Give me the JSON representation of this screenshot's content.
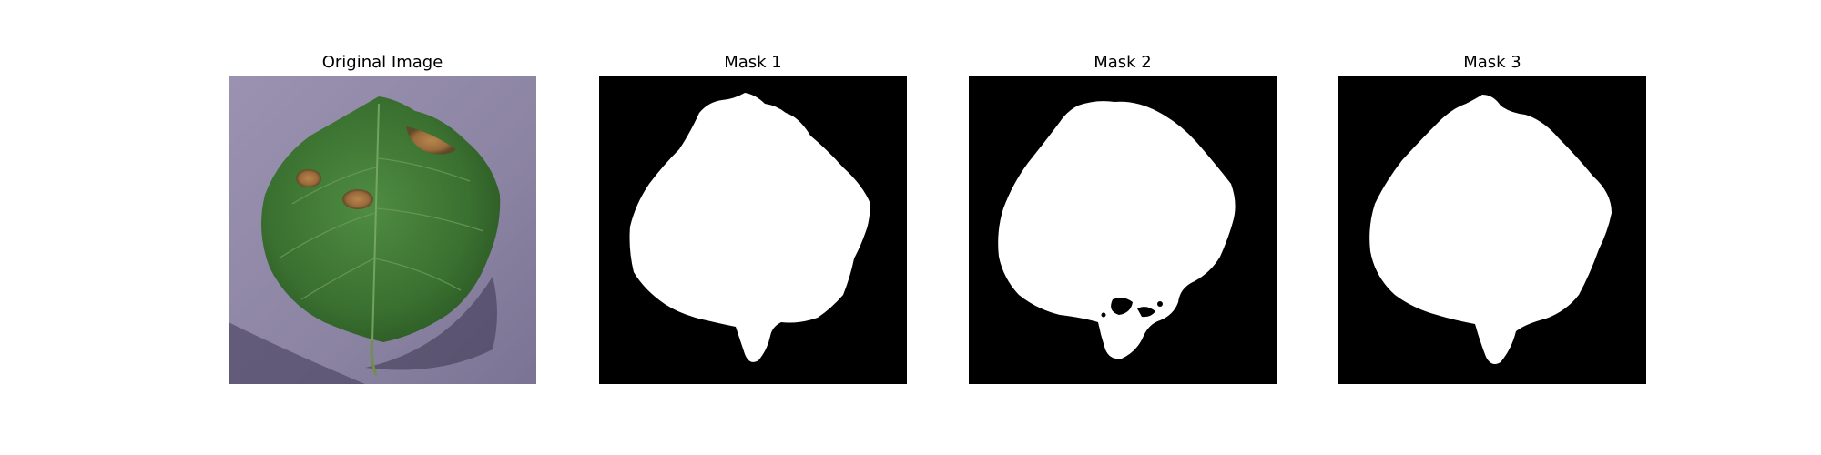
{
  "panels": [
    {
      "title": "Original Image"
    },
    {
      "title": "Mask 1"
    },
    {
      "title": "Mask 2"
    },
    {
      "title": "Mask 3"
    }
  ],
  "colors": {
    "background_cloth": "#8f86a6",
    "leaf_green": "#3f7a35",
    "lesion_brown": "#a0703e",
    "mask_foreground": "#ffffff",
    "mask_background": "#000000"
  }
}
